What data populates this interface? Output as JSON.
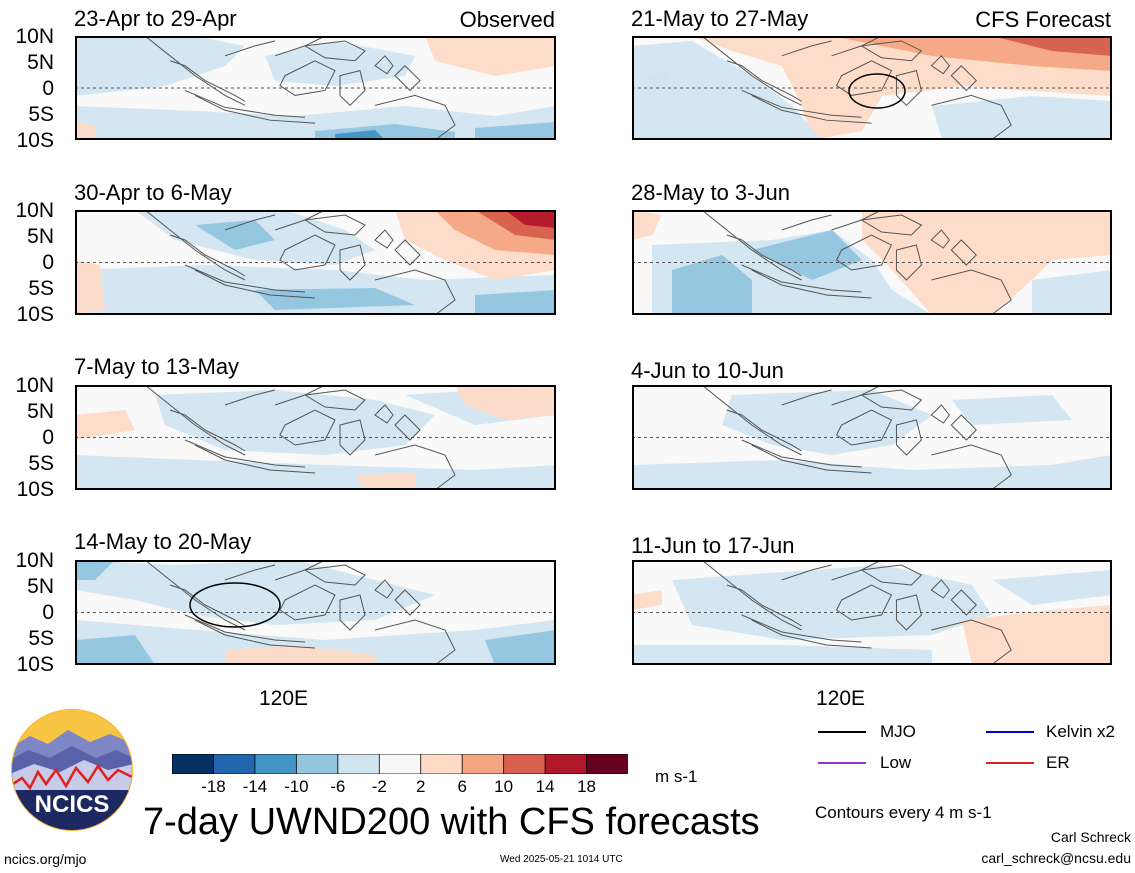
{
  "panels": [
    {
      "period": "23-Apr to 29-Apr",
      "tag": "Observed"
    },
    {
      "period": "21-May to 27-May",
      "tag": "CFS Forecast"
    },
    {
      "period": "30-Apr to 6-May",
      "tag": ""
    },
    {
      "period": "28-May to 3-Jun",
      "tag": ""
    },
    {
      "period": "7-May to 13-May",
      "tag": ""
    },
    {
      "period": "4-Jun to 10-Jun",
      "tag": ""
    },
    {
      "period": "14-May to 20-May",
      "tag": ""
    },
    {
      "period": "11-Jun to 17-Jun",
      "tag": ""
    }
  ],
  "lat_labels": [
    "10N",
    "5N",
    "0",
    "5S",
    "10S"
  ],
  "lon_label": "120E",
  "colorbar": {
    "tick_labels": [
      "-18",
      "-14",
      "-10",
      "-6",
      "-2",
      "2",
      "6",
      "10",
      "14",
      "18"
    ],
    "colors": [
      "#053061",
      "#2166ac",
      "#4393c3",
      "#92c5de",
      "#d1e5f0",
      "#f7f7f7",
      "#fddbc7",
      "#f4a582",
      "#d6604d",
      "#b2182b",
      "#67001f"
    ],
    "units": "m s-1"
  },
  "legend": {
    "items": [
      {
        "label": "MJO",
        "color": "#000000"
      },
      {
        "label": "Kelvin x2",
        "color": "#0000cc"
      },
      {
        "label": "Low",
        "color": "#9933cc"
      },
      {
        "label": "ER",
        "color": "#dd2222"
      }
    ],
    "contour_note": "Contours every 4 m s-1"
  },
  "title": "7-day UWND200 with CFS forecasts",
  "logo_text": "NCICS",
  "footer": {
    "url": "ncics.org/mjo",
    "timestamp": "Wed 2025-05-21 1014 UTC",
    "author": "Carl Schreck",
    "email": "carl_schreck@ncsu.edu"
  }
}
